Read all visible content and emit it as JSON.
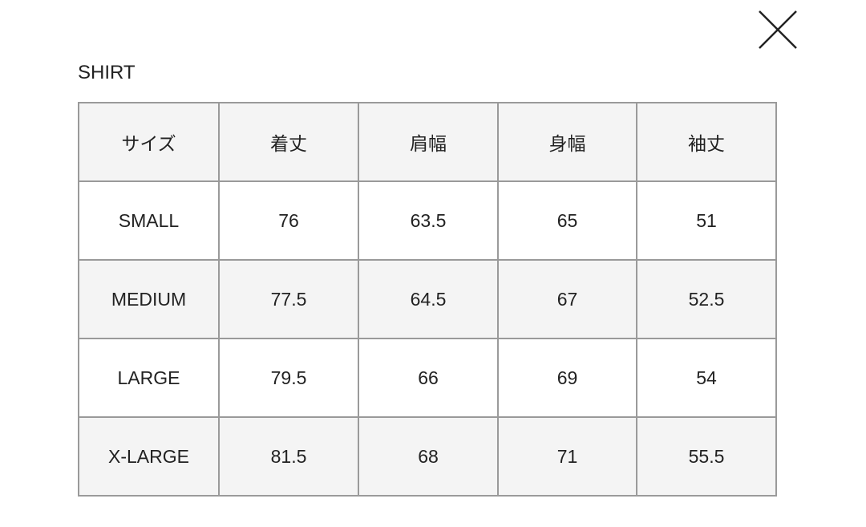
{
  "title": "SHIRT",
  "close_icon": "close-icon",
  "colors": {
    "border": "#9a9a9a",
    "shaded_row": "#f4f4f4"
  },
  "table": {
    "headers": [
      "サイズ",
      "着丈",
      "肩幅",
      "身幅",
      "袖丈"
    ],
    "rows": [
      [
        "SMALL",
        "76",
        "63.5",
        "65",
        "51"
      ],
      [
        "MEDIUM",
        "77.5",
        "64.5",
        "67",
        "52.5"
      ],
      [
        "LARGE",
        "79.5",
        "66",
        "69",
        "54"
      ],
      [
        "X-LARGE",
        "81.5",
        "68",
        "71",
        "55.5"
      ]
    ]
  }
}
